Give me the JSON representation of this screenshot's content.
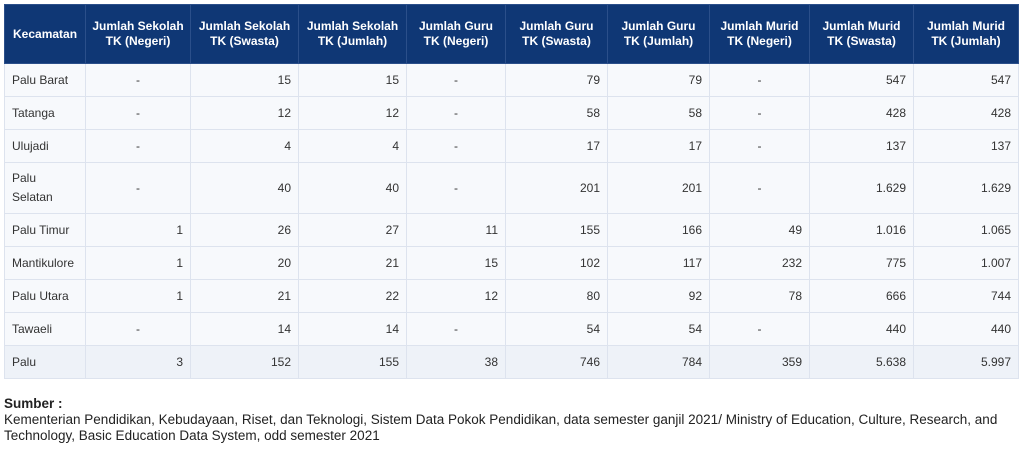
{
  "table": {
    "headers": [
      "Kecamatan",
      "Jumlah Sekolah TK (Negeri)",
      "Jumlah Sekolah TK (Swasta)",
      "Jumlah Sekolah TK (Jumlah)",
      "Jumlah Guru TK (Negeri)",
      "Jumlah Guru TK (Swasta)",
      "Jumlah Guru TK (Jumlah)",
      "Jumlah Murid TK (Negeri)",
      "Jumlah Murid TK (Swasta)",
      "Jumlah Murid TK (Jumlah)"
    ],
    "rows": [
      [
        "Palu Barat",
        "-",
        "15",
        "15",
        "-",
        "79",
        "79",
        "-",
        "547",
        "547"
      ],
      [
        "Tatanga",
        "-",
        "12",
        "12",
        "-",
        "58",
        "58",
        "-",
        "428",
        "428"
      ],
      [
        "Ulujadi",
        "-",
        "4",
        "4",
        "-",
        "17",
        "17",
        "-",
        "137",
        "137"
      ],
      [
        "Palu Selatan",
        "-",
        "40",
        "40",
        "-",
        "201",
        "201",
        "-",
        "1.629",
        "1.629"
      ],
      [
        "Palu Timur",
        "1",
        "26",
        "27",
        "11",
        "155",
        "166",
        "49",
        "1.016",
        "1.065"
      ],
      [
        "Mantikulore",
        "1",
        "20",
        "21",
        "15",
        "102",
        "117",
        "232",
        "775",
        "1.007"
      ],
      [
        "Palu Utara",
        "1",
        "21",
        "22",
        "12",
        "80",
        "92",
        "78",
        "666",
        "744"
      ],
      [
        "Tawaeli",
        "-",
        "14",
        "14",
        "-",
        "54",
        "54",
        "-",
        "440",
        "440"
      ],
      [
        "Palu",
        "3",
        "152",
        "155",
        "38",
        "746",
        "784",
        "359",
        "5.638",
        "5.997"
      ]
    ]
  },
  "source": {
    "label": "Sumber :",
    "text": "Kementerian Pendidikan, Kebudayaan, Riset, dan Teknologi, Sistem Data Pokok Pendidikan, data semester ganjil 2021/ Ministry of Education, Culture, Research, and Technology, Basic Education Data System, odd semester 2021"
  }
}
